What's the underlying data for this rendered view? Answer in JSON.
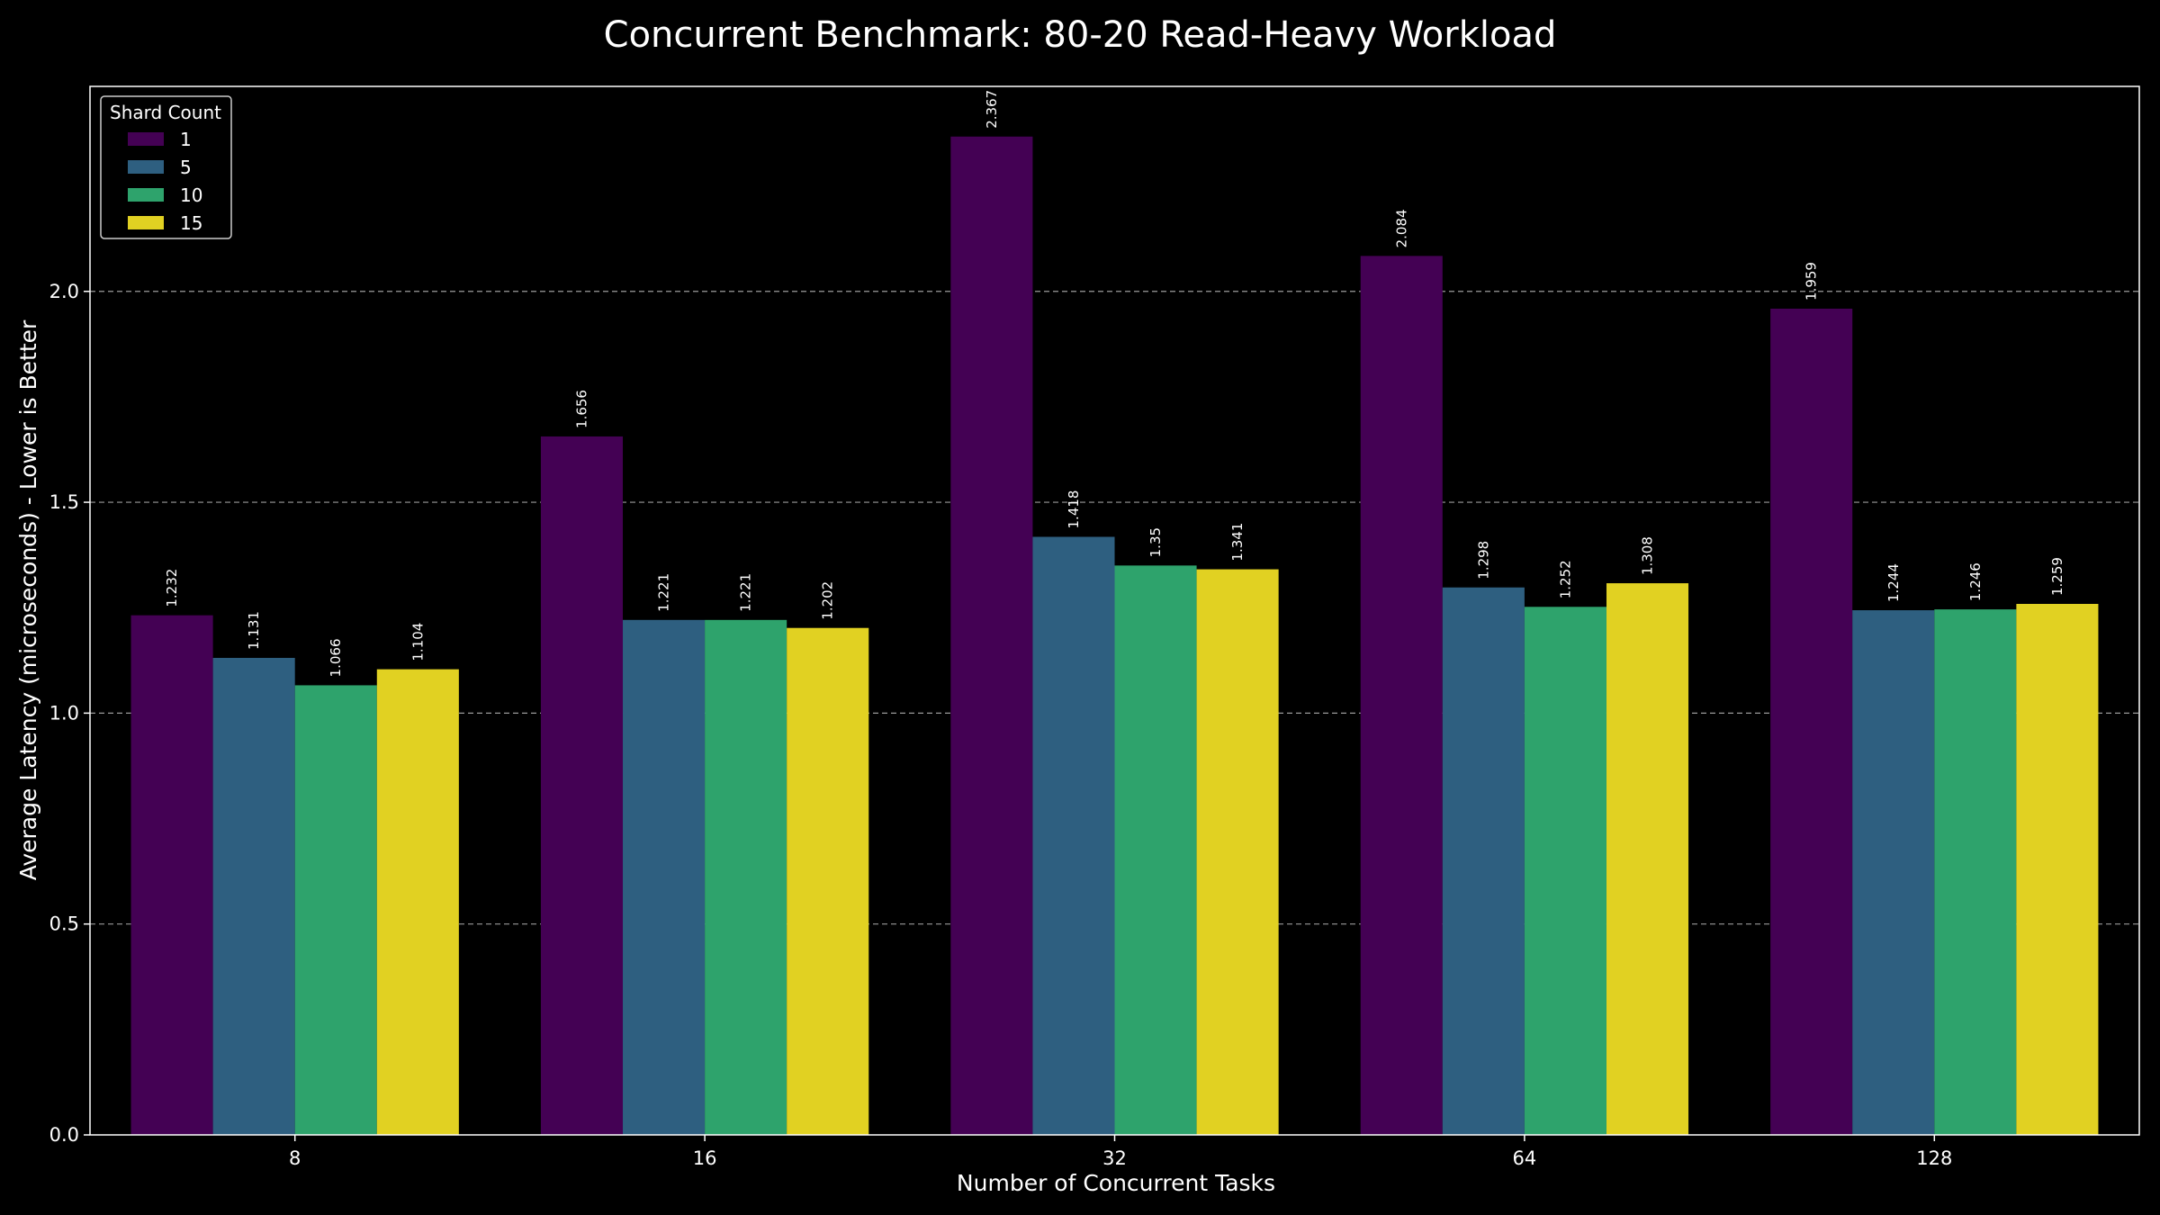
{
  "chart_data": {
    "type": "bar",
    "title": "Concurrent Benchmark: 80-20 Read-Heavy Workload",
    "xlabel": "Number of Concurrent Tasks",
    "ylabel": "Average Latency (microseconds) - Lower is Better",
    "categories": [
      "8",
      "16",
      "32",
      "64",
      "128"
    ],
    "ylim": [
      0,
      2.486
    ],
    "yticks": [
      "0.0",
      "0.5",
      "1.0",
      "1.5",
      "2.0"
    ],
    "grid": "horizontal dashed",
    "legend": {
      "title": "Shard Count",
      "placement": "top-left"
    },
    "series": [
      {
        "name": "1",
        "color": "#440154",
        "values": [
          1.232,
          1.656,
          2.367,
          2.084,
          1.959
        ],
        "labels": [
          "1.232",
          "1.656",
          "2.367",
          "2.084",
          "1.959"
        ]
      },
      {
        "name": "5",
        "color": "#2e5f80",
        "values": [
          1.131,
          1.221,
          1.418,
          1.298,
          1.244
        ],
        "labels": [
          "1.131",
          "1.221",
          "1.418",
          "1.298",
          "1.244"
        ]
      },
      {
        "name": "10",
        "color": "#2ea36c",
        "values": [
          1.066,
          1.221,
          1.35,
          1.252,
          1.246
        ],
        "labels": [
          "1.066",
          "1.221",
          "1.35",
          "1.252",
          "1.246"
        ]
      },
      {
        "name": "15",
        "color": "#e1d122",
        "values": [
          1.104,
          1.202,
          1.341,
          1.308,
          1.259
        ],
        "labels": [
          "1.104",
          "1.202",
          "1.341",
          "1.308",
          "1.259"
        ]
      }
    ]
  }
}
